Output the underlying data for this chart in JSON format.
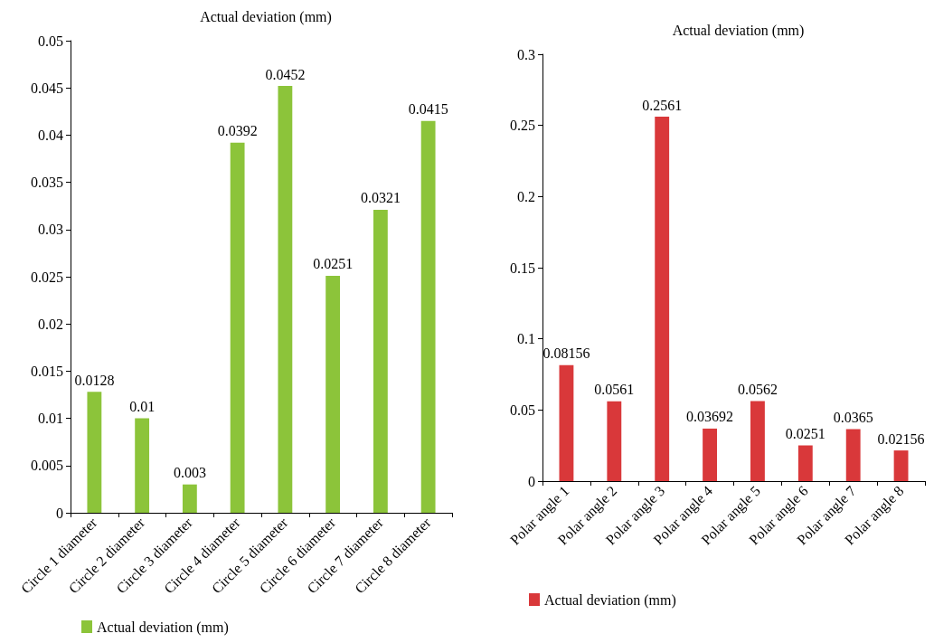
{
  "chart_data": [
    {
      "type": "bar",
      "title": "Actual deviation (mm)",
      "categories": [
        "Circle 1 diameter",
        "Circle 2 diameter",
        "Circle 3 diameter",
        "Circle 4 diameter",
        "Circle 5 diameter",
        "Circle 6 diameter",
        "Circle 7 diameter",
        "Circle 8 diameter"
      ],
      "series": [
        {
          "name": "Actual deviation (mm)",
          "color": "#8cc43a",
          "values": [
            0.0128,
            0.01,
            0.003,
            0.0392,
            0.0452,
            0.0251,
            0.0321,
            0.0415
          ]
        }
      ],
      "ylim": [
        0,
        0.05
      ],
      "yticks": [
        0,
        0.005,
        0.01,
        0.015,
        0.02,
        0.025,
        0.03,
        0.035,
        0.04,
        0.045,
        0.05
      ],
      "grid": false,
      "legend": "bottom left",
      "data_labels": true
    },
    {
      "type": "bar",
      "title": "Actual deviation (mm)",
      "categories": [
        "Polar angle 1",
        "Polar angle 2",
        "Polar angle 3",
        "Polar angle 4",
        "Polar angle 5",
        "Polar angle 6",
        "Polar angle 7",
        "Polar angle 8"
      ],
      "series": [
        {
          "name": "Actual deviation (mm)",
          "color": "#d9383a",
          "values": [
            0.08156,
            0.0561,
            0.2561,
            0.03692,
            0.0562,
            0.0251,
            0.0365,
            0.02156
          ]
        }
      ],
      "ylim": [
        0,
        0.3
      ],
      "yticks": [
        0,
        0.05,
        0.1,
        0.15,
        0.2,
        0.25,
        0.3
      ],
      "grid": false,
      "legend": "bottom left",
      "data_labels": true
    }
  ]
}
